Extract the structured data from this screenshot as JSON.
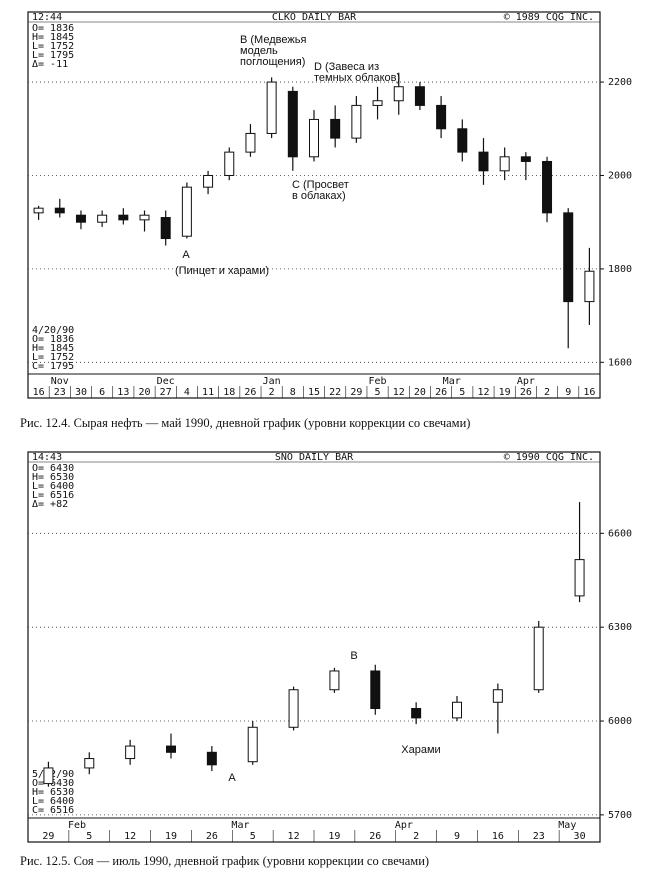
{
  "chart_data": [
    {
      "type": "candlestick",
      "title": "CLKO DAILY BAR",
      "time": "12:44",
      "copyright": "© 1989 CQG INC.",
      "info_top": [
        "O= 1836",
        "H= 1845",
        "L= 1752",
        "L= 1795",
        "Δ= -11"
      ],
      "info_bottom": [
        "4/20/90",
        "O= 1836",
        "H= 1845",
        "L= 1752",
        "C= 1795"
      ],
      "categories": [
        "16",
        "23",
        "30",
        "6",
        "13",
        "20",
        "27",
        "4",
        "11",
        "18",
        "26",
        "2",
        "8",
        "15",
        "22",
        "29",
        "5",
        "12",
        "20",
        "26",
        "5",
        "12",
        "19",
        "26",
        "2",
        "9",
        "16"
      ],
      "months": [
        "Nov",
        "Dec",
        "Jan",
        "Feb",
        "Mar",
        "Apr"
      ],
      "open": [
        1920,
        1930,
        1915,
        1900,
        1915,
        1905,
        1910,
        1870,
        1975,
        2000,
        2050,
        2090,
        2180,
        2040,
        2120,
        2080,
        2150,
        2160,
        2190,
        2150,
        2100,
        2050,
        2010,
        2040,
        2030,
        1920,
        1730
      ],
      "high": [
        1935,
        1950,
        1925,
        1925,
        1930,
        1925,
        1925,
        1985,
        2010,
        2060,
        2110,
        2210,
        2190,
        2140,
        2150,
        2170,
        2190,
        2220,
        2200,
        2170,
        2120,
        2080,
        2060,
        2050,
        2040,
        1930,
        1845
      ],
      "low": [
        1905,
        1910,
        1885,
        1890,
        1895,
        1880,
        1850,
        1865,
        1960,
        1990,
        2040,
        2080,
        2010,
        2030,
        2060,
        2070,
        2120,
        2130,
        2140,
        2080,
        2030,
        1980,
        1990,
        1990,
        1900,
        1630,
        1680
      ],
      "close": [
        1930,
        1920,
        1900,
        1915,
        1905,
        1915,
        1865,
        1975,
        2000,
        2050,
        2090,
        2200,
        2040,
        2120,
        2080,
        2150,
        2160,
        2190,
        2150,
        2100,
        2050,
        2010,
        2040,
        2030,
        1920,
        1730,
        1795
      ],
      "ylim": [
        1575,
        2350
      ],
      "yticks": [
        1600,
        1800,
        2000,
        2200
      ],
      "grid": true,
      "annotations": [
        [
          "B (Медвежья",
          "модель",
          "поглощения)"
        ],
        [
          "D (Завеса из",
          "темных облаков)"
        ],
        [
          "C (Просвет",
          "в облаках)"
        ],
        [
          "A"
        ],
        [
          "(Пинцет и харами)"
        ]
      ],
      "caption": "Рис. 12.4. Сырая нефть — май 1990, дневной график (уровни коррекции со свечами)"
    },
    {
      "type": "candlestick",
      "title": "SNO DAILY BAR",
      "time": "14:43",
      "copyright": "© 1990 CQG INC.",
      "info_top": [
        "O= 6430",
        "H= 6530",
        "L= 6400",
        "L= 6516",
        "Δ= +82"
      ],
      "info_bottom": [
        "5/ 2/90",
        "O= 6430",
        "H= 6530",
        "L= 6400",
        "C= 6516"
      ],
      "categories": [
        "29",
        "5",
        "12",
        "19",
        "26",
        "5",
        "12",
        "19",
        "26",
        "2",
        "9",
        "16",
        "23",
        "30"
      ],
      "months": [
        "Feb",
        "Mar",
        "Apr",
        "May"
      ],
      "open": [
        5800,
        5850,
        5880,
        5920,
        5900,
        5870,
        5980,
        6100,
        6160,
        6040,
        6010,
        6060,
        6100,
        6400
      ],
      "high": [
        5870,
        5900,
        5940,
        5960,
        5920,
        6000,
        6110,
        6170,
        6180,
        6060,
        6080,
        6120,
        6320,
        6700
      ],
      "low": [
        5790,
        5830,
        5860,
        5880,
        5840,
        5860,
        5970,
        6090,
        6020,
        5990,
        6000,
        5960,
        6090,
        6380
      ],
      "close": [
        5850,
        5880,
        5920,
        5900,
        5860,
        5980,
        6100,
        6160,
        6040,
        6010,
        6060,
        6100,
        6300,
        6516
      ],
      "ylim": [
        5690,
        6860
      ],
      "yticks": [
        5700,
        6000,
        6300,
        6600
      ],
      "grid": true,
      "annotations": [
        [
          "B"
        ],
        [
          "A"
        ],
        [
          "Харами"
        ]
      ],
      "caption": "Рис. 12.5. Соя — июль 1990, дневной график (уровни коррекции со свечами)"
    }
  ]
}
